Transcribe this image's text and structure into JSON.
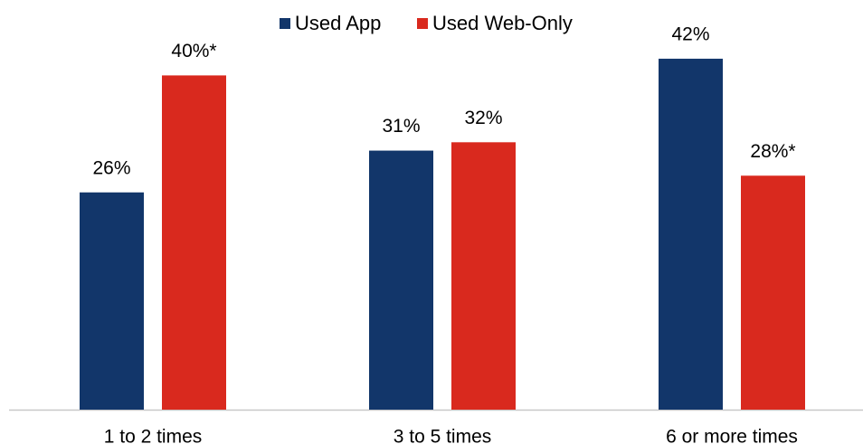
{
  "chart_data": {
    "type": "bar",
    "categories": [
      "1 to 2 times",
      "3 to 5 times",
      "6 or more times"
    ],
    "series": [
      {
        "name": "Used App",
        "color": "#12366a",
        "values": [
          26,
          31,
          42
        ],
        "value_labels": [
          "26%",
          "31%",
          "42%"
        ]
      },
      {
        "name": "Used Web-Only",
        "color": "#d9291e",
        "values": [
          40,
          32,
          28
        ],
        "value_labels": [
          "40%*",
          "32%",
          "28%*"
        ]
      }
    ],
    "legend": "top"
  }
}
